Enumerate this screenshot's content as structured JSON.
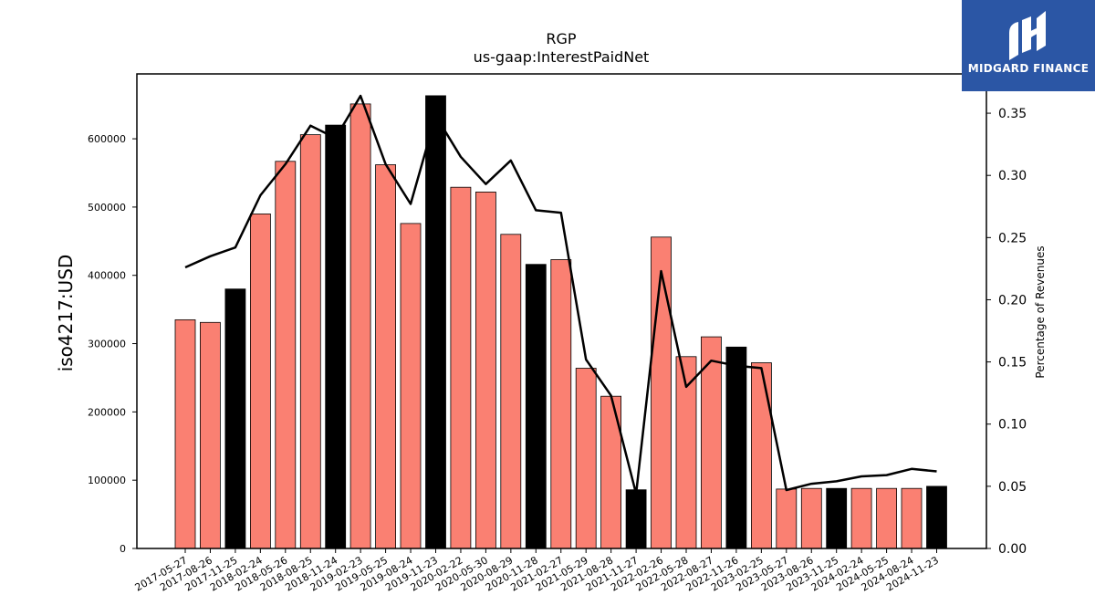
{
  "logo": {
    "text": "MIDGARD FINANCE",
    "background": "#2b56a5"
  },
  "chart_data": {
    "type": "bar",
    "title": "RGP",
    "subtitle": "us-gaap:InterestPaidNet",
    "ylabel": "iso4217:USD",
    "y2label": "Percentage of Revenues",
    "ylim": [
      0,
      695000
    ],
    "y2lim": [
      0,
      0.3816
    ],
    "yticks": [
      0,
      100000,
      200000,
      300000,
      400000,
      500000,
      600000
    ],
    "y2ticks": [
      "0.00",
      "0.05",
      "0.10",
      "0.15",
      "0.20",
      "0.25",
      "0.30",
      "0.35"
    ],
    "grid": false,
    "colors": {
      "regular": "#fa8072",
      "highlight": "#000000",
      "line": "#000000"
    },
    "categories": [
      "2017-05-27",
      "2017-08-26",
      "2017-11-25",
      "2018-02-24",
      "2018-05-26",
      "2018-08-25",
      "2018-11-24",
      "2019-02-23",
      "2019-05-25",
      "2019-08-24",
      "2019-11-23",
      "2020-02-22",
      "2020-05-30",
      "2020-08-29",
      "2020-11-28",
      "2021-02-27",
      "2021-05-29",
      "2021-08-28",
      "2021-11-27",
      "2022-02-26",
      "2022-05-28",
      "2022-08-27",
      "2022-11-26",
      "2023-02-25",
      "2023-05-27",
      "2023-08-26",
      "2023-11-25",
      "2024-02-24",
      "2024-05-25",
      "2024-08-24",
      "2024-11-23"
    ],
    "values": [
      335000,
      331000,
      380000,
      490000,
      567000,
      606000,
      620000,
      651000,
      562000,
      476000,
      663000,
      529000,
      522000,
      460000,
      416000,
      423000,
      264000,
      223000,
      86000,
      456000,
      281000,
      310000,
      295000,
      272000,
      87000,
      88000,
      88000,
      88000,
      88000,
      88000,
      91000
    ],
    "highlight": [
      false,
      false,
      true,
      false,
      false,
      false,
      true,
      false,
      false,
      false,
      true,
      false,
      false,
      false,
      true,
      false,
      false,
      false,
      true,
      false,
      false,
      false,
      true,
      false,
      false,
      false,
      true,
      false,
      false,
      false,
      true
    ],
    "line_series": {
      "name": "Percentage of Revenues",
      "values": [
        0.226,
        0.235,
        0.242,
        0.284,
        0.309,
        0.34,
        0.33,
        0.364,
        0.309,
        0.277,
        0.348,
        0.315,
        0.293,
        0.312,
        0.272,
        0.27,
        0.152,
        0.123,
        0.044,
        0.223,
        0.13,
        0.151,
        0.147,
        0.145,
        0.047,
        0.052,
        0.054,
        0.058,
        0.059,
        0.064,
        0.062
      ]
    }
  }
}
